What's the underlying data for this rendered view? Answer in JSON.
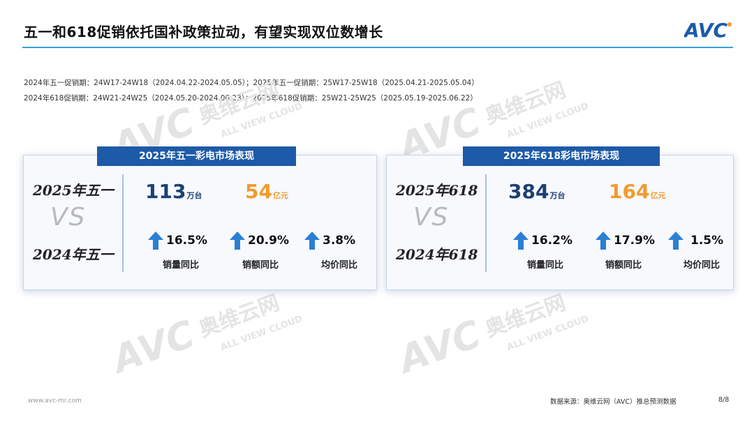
{
  "header": {
    "title": "五一和618促销依托国补政策拉动，有望实现双位数增长",
    "logo_text": "AVC"
  },
  "periods": {
    "line1": "2024年五一促销期：24W17-24W18（2024.04.22-2024.05.05）；2025年五一促销期：25W17-25W18（2025.04.21-2025.05.04）",
    "line2": "2024年618促销期：24W21-24W25（2024.05.20-2024.06.23）；2025年618促销期：25W21-25W25（2025.05.19-2025.06.22）"
  },
  "watermark": {
    "logo": "AVC",
    "cn": "奥维云网",
    "en": "ALL VIEW CLOUD"
  },
  "cards": {
    "may_day": {
      "header": "2025年五一彩电市场表现",
      "current": "2025年五一",
      "vs": "VS",
      "previous": "2024年五一",
      "volume_value": "113",
      "volume_unit": "万台",
      "revenue_value": "54",
      "revenue_unit": "亿元",
      "volume_growth": "16.5%",
      "revenue_growth": "20.9%",
      "price_growth": "3.8%",
      "volume_label": "销量同比",
      "revenue_label": "销额同比",
      "price_label": "均价同比"
    },
    "s618": {
      "header": "2025年618彩电市场表现",
      "current": "2025年618",
      "vs": "VS",
      "previous": "2024年618",
      "volume_value": "384",
      "volume_unit": "万台",
      "revenue_value": "164",
      "revenue_unit": "亿元",
      "volume_growth": "16.2%",
      "revenue_growth": "17.9%",
      "price_growth": "1.5%",
      "volume_label": "销量同比",
      "revenue_label": "销额同比",
      "price_label": "均价同比"
    }
  },
  "footer": {
    "website": "www.avc-mr.com",
    "source": "数据来源：奥维云网（AVC）推总预测数据",
    "page": "8/8"
  },
  "colors": {
    "brand_blue": "#1d5aa8",
    "navy_value": "#1d3f73",
    "orange_value": "#f39a2c",
    "arrow_blue": "#2a7fd4"
  }
}
